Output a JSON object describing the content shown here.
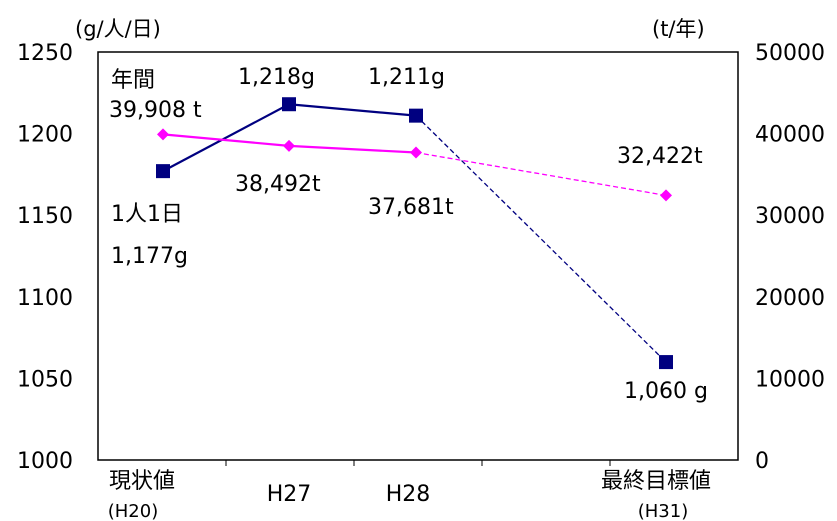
{
  "chart_data": {
    "type": "line",
    "categories": [
      "現状値",
      "H27",
      "H28",
      "最終目標値"
    ],
    "category_subs": [
      "(H20)",
      "",
      "",
      "(H31)"
    ],
    "left_axis": {
      "unit": "(g/人/日)",
      "min": 1000,
      "max": 1250,
      "ticks": [
        1000,
        1050,
        1100,
        1150,
        1200,
        1250
      ]
    },
    "right_axis": {
      "unit": "(t/年)",
      "min": 0,
      "max": 50000,
      "ticks": [
        0,
        10000,
        20000,
        30000,
        40000,
        50000
      ]
    },
    "series": [
      {
        "id": "per_person",
        "axis": "left",
        "color": "#000080",
        "marker": "square",
        "values": [
          1177,
          1218,
          1211,
          1060
        ],
        "dashed_last_segment": true
      },
      {
        "id": "annual",
        "axis": "right",
        "color": "#ff00ff",
        "marker": "diamond",
        "values": [
          39908,
          38492,
          37681,
          32422
        ],
        "dashed_last_segment": true
      }
    ],
    "annotations": {
      "annual_head": "年間",
      "per_person_head": "1人1日",
      "per_person_labels": [
        "1,177g",
        "1,218g",
        "1,211g",
        "1,060 g"
      ],
      "annual_labels": [
        "39,908 t",
        "38,492t",
        "37,681t",
        "32,422t"
      ]
    }
  }
}
